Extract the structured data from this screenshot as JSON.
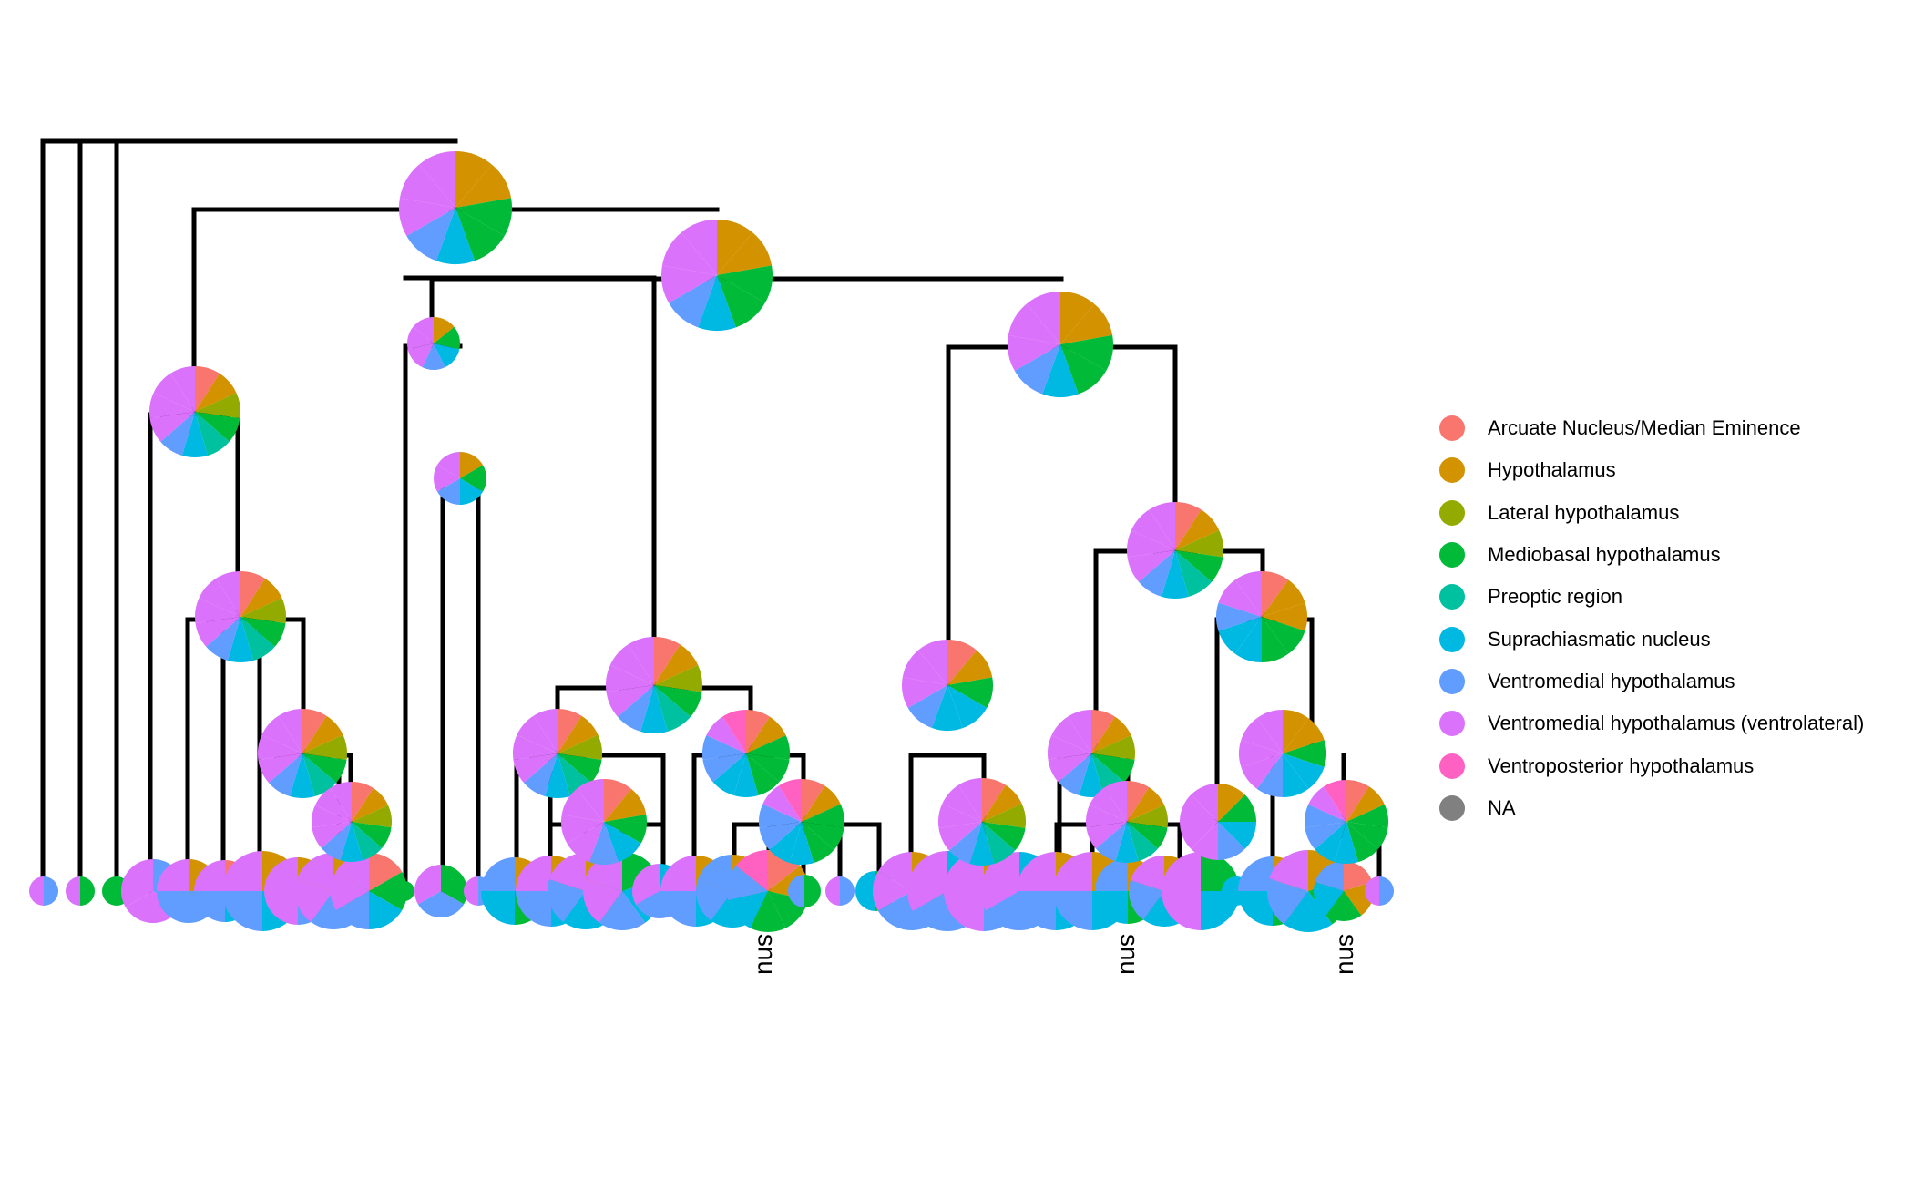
{
  "chart_data": {
    "type": "tree-pie",
    "title": "",
    "legend_position": "right",
    "categories": [
      {
        "name": "Arcuate Nucleus/Median Eminence",
        "color": "#F8766D"
      },
      {
        "name": "Hypothalamus",
        "color": "#D39200"
      },
      {
        "name": "Lateral hypothalamus",
        "color": "#93AA00"
      },
      {
        "name": "Mediobasal hypothalamus",
        "color": "#00BA38"
      },
      {
        "name": "Preoptic region",
        "color": "#00C19F"
      },
      {
        "name": "Suprachiasmatic nucleus",
        "color": "#00B9E3"
      },
      {
        "name": "Ventromedial hypothalamus",
        "color": "#619CFF"
      },
      {
        "name": "Ventromedial hypothalamus (ventrolateral)",
        "color": "#DB72FB"
      },
      {
        "name": "Ventroposterior hypothalamus",
        "color": "#FF61C3"
      },
      {
        "name": "NA",
        "color": "#808080"
      }
    ],
    "leaf_labels": [
      {
        "text": "snu"
      },
      {
        "text": "snu"
      },
      {
        "text": "snu"
      }
    ]
  }
}
